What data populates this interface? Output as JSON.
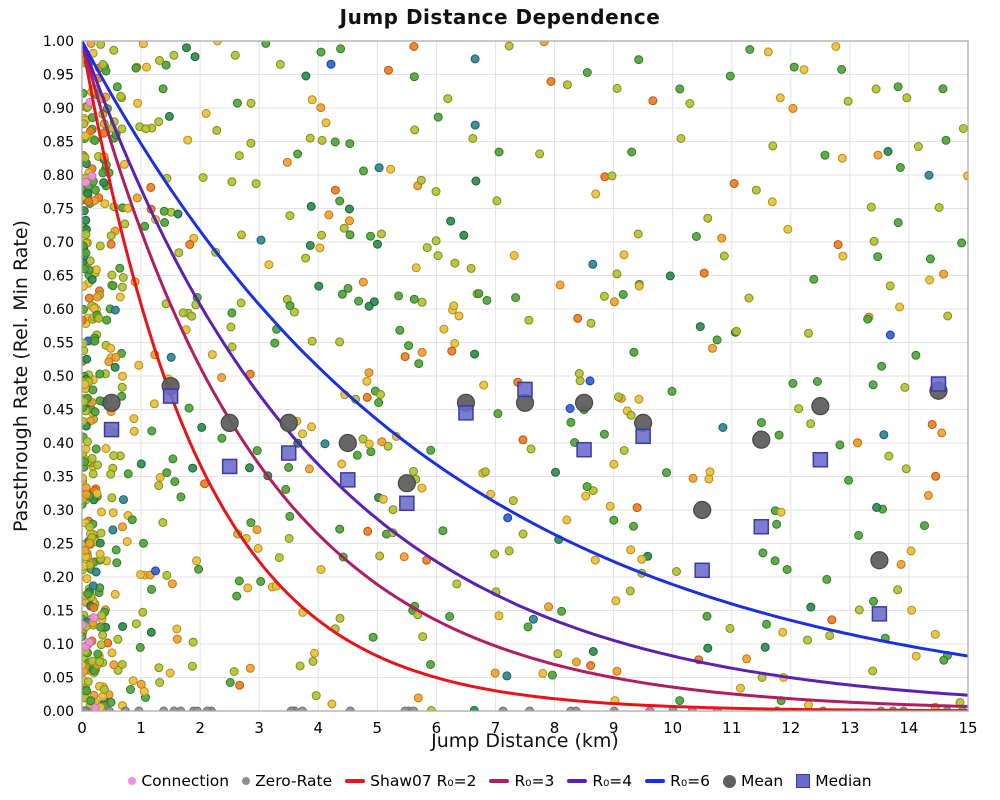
{
  "chart_data": {
    "type": "scatter",
    "title": "Jump Distance Dependence",
    "xlabel": "Jump Distance (km)",
    "ylabel": "Passthrough Rate (Rel. Min Rate)",
    "xlim": [
      0,
      15
    ],
    "ylim": [
      0.0,
      1.0
    ],
    "xticks": [
      0,
      1,
      2,
      3,
      4,
      5,
      6,
      7,
      8,
      9,
      10,
      11,
      12,
      13,
      14,
      15
    ],
    "ytick_step": 0.05,
    "grid": true,
    "grid_color": "#e3e3e3",
    "frame_color": "#aaaaaa",
    "legend_position": "bottom",
    "curves": [
      {
        "key": "shaw07-r2",
        "label": "Shaw07 R₀=2",
        "R0": 2,
        "formula": "y = exp(-x/R0)",
        "color": "#e8131b"
      },
      {
        "key": "r3",
        "label": "R₀=3",
        "R0": 3,
        "formula": "y = exp(-x/R0)",
        "color": "#b01e62"
      },
      {
        "key": "r4",
        "label": "R₀=4",
        "R0": 4,
        "formula": "y = exp(-x/R0)",
        "color": "#5b21b5"
      },
      {
        "key": "r6",
        "label": "R₀=6",
        "R0": 6,
        "formula": "y = exp(-x/R0)",
        "color": "#1a2fe6"
      }
    ],
    "bin_centers": [
      0.5,
      1.5,
      2.5,
      3.5,
      4.5,
      5.5,
      6.5,
      7.5,
      8.5,
      9.5,
      10.5,
      11.5,
      12.5,
      13.5,
      14.5
    ],
    "mean_series": {
      "label": "Mean",
      "marker": "circle",
      "fill": "#5f5f5f",
      "stroke": "#474747",
      "values": [
        0.46,
        0.485,
        0.43,
        0.43,
        0.4,
        0.34,
        0.46,
        0.46,
        0.46,
        0.43,
        0.3,
        0.405,
        0.455,
        0.225,
        0.478
      ]
    },
    "median_series": {
      "label": "Median",
      "marker": "square",
      "fill": "#6a6acd",
      "stroke": "#3b3b9e",
      "values": [
        0.42,
        0.47,
        0.365,
        0.385,
        0.345,
        0.31,
        0.445,
        0.48,
        0.39,
        0.41,
        0.21,
        0.275,
        0.375,
        0.145,
        0.488
      ]
    },
    "scatter_spec": {
      "description": "dense multicolor connection scatter, heavy cluster near x=0, gray zero-rate points on y=0",
      "seed": 1337,
      "point_radius": 4,
      "groups": [
        {
          "name": "spread",
          "count": 560,
          "x_dist": "pow",
          "x_pow": 1.35,
          "y_dist": "uniform"
        },
        {
          "name": "cluster",
          "count": 300,
          "x_dist": "exp",
          "x_mean": 0.3,
          "y_dist": "pow",
          "y_pow": 1.12
        },
        {
          "name": "zero_rate",
          "count": 38,
          "x_dist": "pow",
          "x_pow": 1.5,
          "y_dist": "zero",
          "color": "gray"
        },
        {
          "name": "connection",
          "count": 8,
          "x_dist": "exp",
          "x_mean": 0.25,
          "y_dist": "uniform",
          "color": "pink"
        }
      ],
      "palette": [
        {
          "name": "yellowgreen",
          "fill": "#b3c231",
          "stroke": "#7d8d1f",
          "w": 0.26
        },
        {
          "name": "green",
          "fill": "#53a33c",
          "stroke": "#347c27",
          "w": 0.25
        },
        {
          "name": "gold",
          "fill": "#e7c13a",
          "stroke": "#b38f1d",
          "w": 0.21
        },
        {
          "name": "orange",
          "fill": "#f0a032",
          "stroke": "#bd7a16",
          "w": 0.1
        },
        {
          "name": "darkorange",
          "fill": "#ee7d22",
          "stroke": "#b65a10",
          "w": 0.05
        },
        {
          "name": "darkgreen",
          "fill": "#2f8b4e",
          "stroke": "#1e6336",
          "w": 0.08
        },
        {
          "name": "teal",
          "fill": "#31868f",
          "stroke": "#1d6168",
          "w": 0.03
        },
        {
          "name": "blue",
          "fill": "#2f62d4",
          "stroke": "#1c3f9c",
          "w": 0.02
        }
      ],
      "special_colors": {
        "gray": {
          "fill": "#8f8f8f",
          "stroke": "#6e6e6e"
        },
        "pink": {
          "fill": "#f18fdc",
          "stroke": "#cf6cba"
        }
      }
    }
  },
  "legend": {
    "items": [
      {
        "key": "connection",
        "label": "Connection",
        "marker": "dot",
        "color": "#f18fdc"
      },
      {
        "key": "zero-rate",
        "label": "Zero-Rate",
        "marker": "dot",
        "color": "#8f8f8f"
      },
      {
        "key": "shaw07-r2",
        "label": "Shaw07 R₀=2",
        "marker": "line",
        "color": "#e8131b"
      },
      {
        "key": "r3",
        "label": "R₀=3",
        "marker": "line",
        "color": "#b01e62"
      },
      {
        "key": "r4",
        "label": "R₀=4",
        "marker": "line",
        "color": "#5b21b5"
      },
      {
        "key": "r6",
        "label": "R₀=6",
        "marker": "line",
        "color": "#1a2fe6"
      },
      {
        "key": "mean",
        "label": "Mean",
        "marker": "circle",
        "color": "#5f5f5f"
      },
      {
        "key": "median",
        "label": "Median",
        "marker": "square",
        "color": "#6a6acd",
        "stroke": "#3b3b9e"
      }
    ]
  }
}
